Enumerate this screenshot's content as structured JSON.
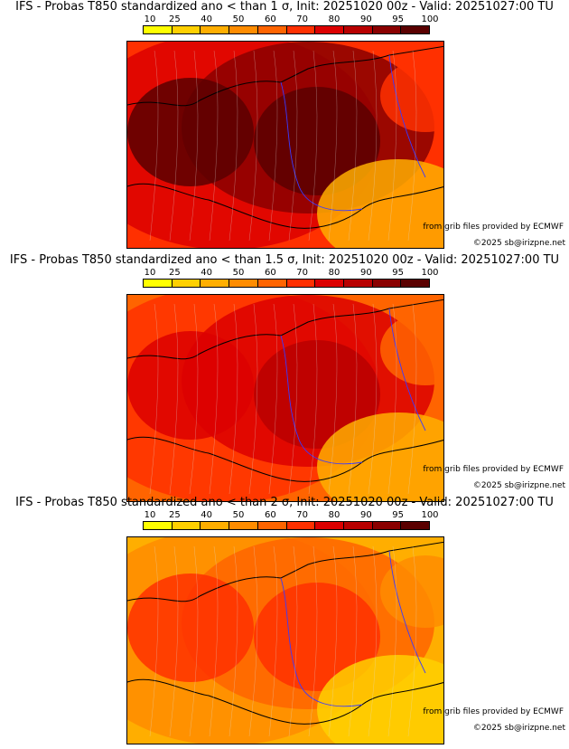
{
  "legend": {
    "ticks": [
      "10",
      "25",
      "40",
      "50",
      "60",
      "70",
      "80",
      "90",
      "95",
      "100"
    ],
    "colors": [
      "#ffff00",
      "#ffd000",
      "#ffae00",
      "#ff8c00",
      "#ff6400",
      "#ff3000",
      "#dc0000",
      "#b80000",
      "#8a0000",
      "#5a0000"
    ]
  },
  "credits": {
    "source": "from grib files provided by ECMWF",
    "copyright": "©2025 sb@irizpne.net"
  },
  "panels": [
    {
      "title": "IFS - Probas T850  standardized ano < than 1 σ, Init: 20251020 00z - Valid: 20251027:00 TU",
      "threshold": "1 σ",
      "intensity": 0.95
    },
    {
      "title": "IFS - Probas T850  standardized ano < than 1.5 σ, Init: 20251020 00z - Valid: 20251027:00 TU",
      "threshold": "1.5 σ",
      "intensity": 0.72
    },
    {
      "title": "IFS - Probas T850  standardized ano < than 2 σ, Init: 20251020 00z - Valid: 20251027:00 TU",
      "threshold": "2 σ",
      "intensity": 0.5
    }
  ]
}
